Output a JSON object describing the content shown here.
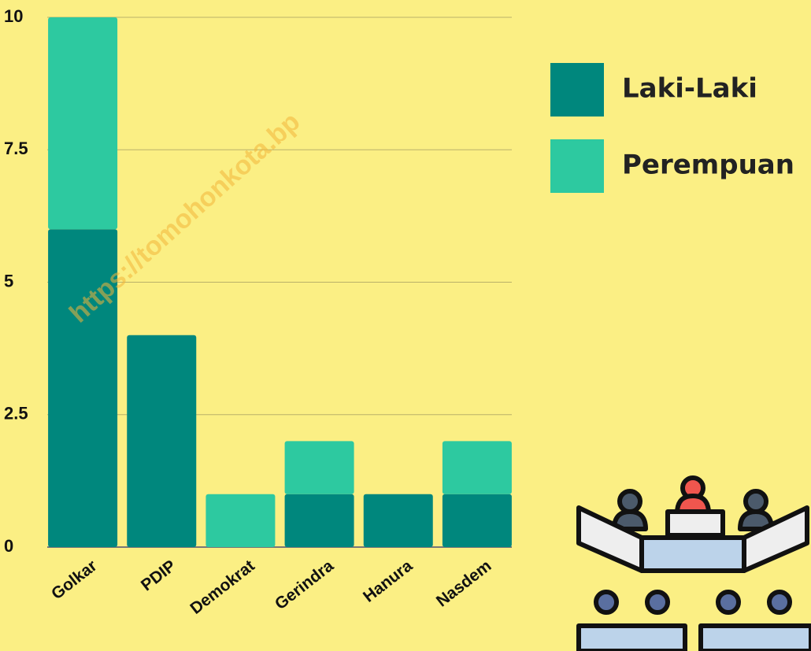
{
  "chart_data": {
    "type": "bar",
    "stacked": true,
    "categories": [
      "Golkar",
      "PDIP",
      "Demokrat",
      "Gerindra",
      "Hanura",
      "Nasdem"
    ],
    "series": [
      {
        "name": "Laki-Laki",
        "color": "#00877d",
        "values": [
          6,
          4,
          0,
          1,
          1,
          1
        ]
      },
      {
        "name": "Perempuan",
        "color": "#2dc9a0",
        "values": [
          4,
          0,
          1,
          1,
          0,
          1
        ]
      }
    ],
    "ylim": [
      0,
      10
    ],
    "yticks": [
      0,
      2.5,
      5,
      7.5,
      10
    ],
    "grid": true,
    "legend": "right",
    "watermark": "https://tomohonkota.bp"
  }
}
